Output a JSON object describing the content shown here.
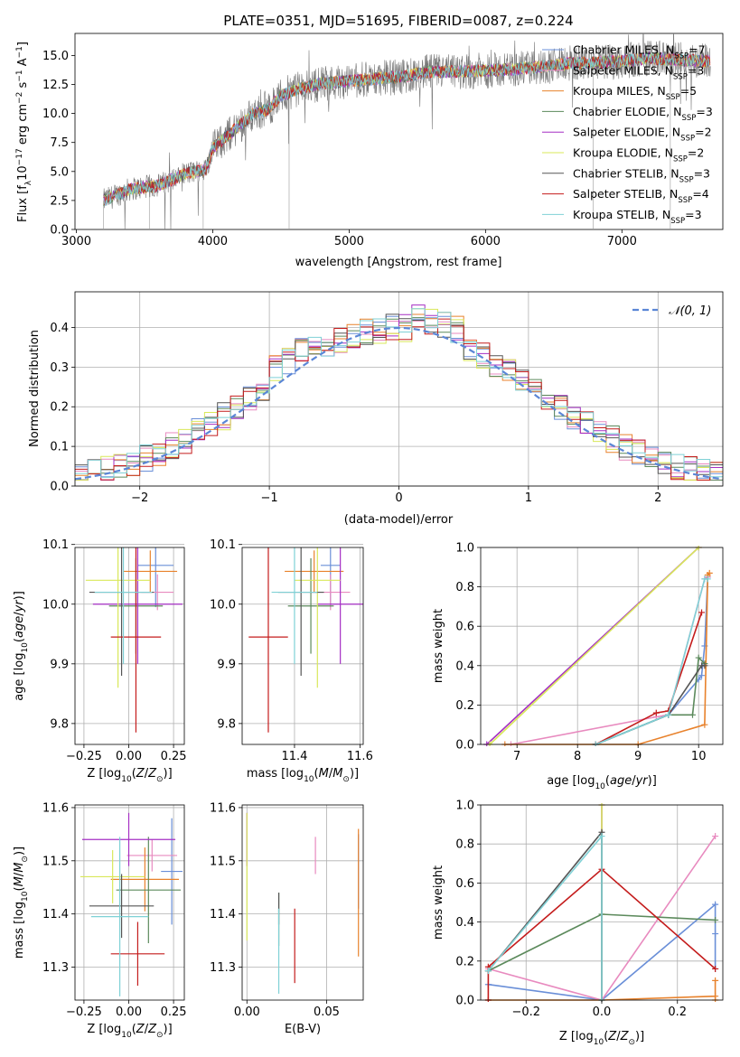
{
  "colors": {
    "Chabrier MILES": "#6a8fd8",
    "Salpeter MILES": "#e88abf",
    "Kroupa MILES": "#e8822c",
    "Chabrier ELODIE": "#5c8a5c",
    "Salpeter ELODIE": "#a52fc4",
    "Kroupa ELODIE": "#d9e85a",
    "Chabrier STELIB": "#555555",
    "Salpeter STELIB": "#c41c1c",
    "Kroupa STELIB": "#7fd1d6",
    "normal_curve": "#5b86d6"
  },
  "chart_data": [
    {
      "type": "line",
      "title": "PLATE=0351, MJD=51695, FIBERID=0087, z=0.224",
      "xlabel": "wavelength [Angstrom, rest frame]",
      "ylabel": "Flux [f_λ 10^-17 erg cm^-2 s^-1 A^-1]",
      "xlim": [
        2990,
        7740
      ],
      "ylim": [
        0,
        16.9
      ],
      "xticks": [
        "3000",
        "4000",
        "5000",
        "6000",
        "7000"
      ],
      "yticks": [
        "0.0",
        "2.5",
        "5.0",
        "7.5",
        "10.0",
        "12.5",
        "15.0"
      ],
      "legend": "upper-right",
      "legend_entries": [
        {
          "label": "Chabrier MILES, N",
          "sub": "SSP",
          "suffix": "=7"
        },
        {
          "label": "Salpeter MILES, N",
          "sub": "SSP",
          "suffix": "=3"
        },
        {
          "label": "Kroupa MILES, N",
          "sub": "SSP",
          "suffix": "=5"
        },
        {
          "label": "Chabrier ELODIE, N",
          "sub": "SSP",
          "suffix": "=3"
        },
        {
          "label": "Salpeter ELODIE, N",
          "sub": "SSP",
          "suffix": "=2"
        },
        {
          "label": "Kroupa ELODIE, N",
          "sub": "SSP",
          "suffix": "=2"
        },
        {
          "label": "Chabrier STELIB, N",
          "sub": "SSP",
          "suffix": "=3"
        },
        {
          "label": "Salpeter STELIB, N",
          "sub": "SSP",
          "suffix": "=4"
        },
        {
          "label": "Kroupa STELIB, N",
          "sub": "SSP",
          "suffix": "=3"
        }
      ],
      "spectrum_anchor_points": {
        "x": [
          3200,
          3400,
          3600,
          3800,
          3950,
          4000,
          4100,
          4200,
          4300,
          4400,
          4500,
          4600,
          4800,
          5000,
          5200,
          5400,
          5600,
          5800,
          6000,
          6200,
          6400,
          6600,
          6800,
          7000,
          7200,
          7400,
          7650
        ],
        "y": [
          2.5,
          3.5,
          3.8,
          4.8,
          5.2,
          7.0,
          8.0,
          9.0,
          10.0,
          10.3,
          11.5,
          12.0,
          12.6,
          12.8,
          13.0,
          13.2,
          13.6,
          13.6,
          13.7,
          13.8,
          14.0,
          14.3,
          14.4,
          14.5,
          14.8,
          14.6,
          14.5
        ]
      }
    },
    {
      "type": "histogram",
      "xlabel": "(data-model)/error",
      "ylabel": "Normed distribution",
      "xlim": [
        -2.5,
        2.5
      ],
      "ylim": [
        0,
        0.49
      ],
      "xticks": [
        "−2",
        "−1",
        "0",
        "1",
        "2"
      ],
      "yticks": [
        "0.0",
        "0.1",
        "0.2",
        "0.3",
        "0.4"
      ],
      "legend": "upper-right",
      "legend_label": "𝒩(0, 1)",
      "bin_width": 0.1
    },
    {
      "type": "errorbar",
      "xlabel": "Z [log10(Z/Z⊙)]",
      "ylabel": "age [log10(age/yr)]",
      "xlim": [
        -0.3,
        0.31
      ],
      "ylim": [
        9.765,
        10.095
      ],
      "xticks": [
        "−0.25",
        "0.00",
        "0.25"
      ],
      "yticks": [
        "9.8",
        "9.9",
        "10.0",
        "10.1"
      ],
      "points": [
        {
          "series": "Chabrier MILES",
          "x": 0.15,
          "xerr": 0.1,
          "y": 10.065,
          "yerr": 0.07
        },
        {
          "series": "Salpeter MILES",
          "x": 0.16,
          "xerr": 0.09,
          "y": 10.02,
          "yerr": 0.03
        },
        {
          "series": "Kroupa MILES",
          "x": 0.12,
          "xerr": 0.15,
          "y": 10.055,
          "yerr": 0.035
        },
        {
          "series": "Chabrier ELODIE",
          "x": 0.04,
          "xerr": 0.15,
          "y": 9.997,
          "yerr": 0.08
        },
        {
          "series": "Salpeter ELODIE",
          "x": 0.05,
          "xerr": 0.25,
          "y": 10.0,
          "yerr": 0.1
        },
        {
          "series": "Kroupa ELODIE",
          "x": -0.06,
          "xerr": 0.18,
          "y": 10.04,
          "yerr": 0.18
        },
        {
          "series": "Chabrier STELIB",
          "x": -0.04,
          "xerr": 0.18,
          "y": 10.02,
          "yerr": 0.14
        },
        {
          "series": "Salpeter STELIB",
          "x": 0.04,
          "xerr": 0.14,
          "y": 9.945,
          "yerr": 0.16
        },
        {
          "series": "Kroupa STELIB",
          "x": -0.03,
          "xerr": 0.16,
          "y": 10.02,
          "yerr": 0.12
        }
      ]
    },
    {
      "type": "errorbar",
      "xlabel": "mass [log10(M/M⊙)]",
      "ylabel": "",
      "xlim": [
        11.24,
        11.61
      ],
      "ylim": [
        9.765,
        10.095
      ],
      "xticks": [
        "11.4",
        "11.6"
      ],
      "yticks": [
        "9.8",
        "9.9",
        "10.0",
        "10.1"
      ],
      "points": [
        {
          "series": "Chabrier MILES",
          "x": 11.51,
          "xerr": 0.03,
          "y": 10.065,
          "yerr": 0.07
        },
        {
          "series": "Salpeter MILES",
          "x": 11.51,
          "xerr": 0.06,
          "y": 10.02,
          "yerr": 0.03
        },
        {
          "series": "Kroupa MILES",
          "x": 11.46,
          "xerr": 0.09,
          "y": 10.055,
          "yerr": 0.035
        },
        {
          "series": "Chabrier ELODIE",
          "x": 11.45,
          "xerr": 0.07,
          "y": 9.997,
          "yerr": 0.08
        },
        {
          "series": "Salpeter ELODIE",
          "x": 11.54,
          "xerr": 0.07,
          "y": 10.0,
          "yerr": 0.1
        },
        {
          "series": "Kroupa ELODIE",
          "x": 11.47,
          "xerr": 0.07,
          "y": 10.04,
          "yerr": 0.18
        },
        {
          "series": "Chabrier STELIB",
          "x": 11.42,
          "xerr": 0.07,
          "y": 10.02,
          "yerr": 0.14
        },
        {
          "series": "Salpeter STELIB",
          "x": 11.32,
          "xerr": 0.06,
          "y": 9.945,
          "yerr": 0.16
        },
        {
          "series": "Kroupa STELIB",
          "x": 11.4,
          "xerr": 0.07,
          "y": 10.02,
          "yerr": 0.12
        }
      ]
    },
    {
      "type": "line",
      "xlabel": "age  [log10(age/yr)]",
      "ylabel": "mass weight",
      "xlim": [
        6.4,
        10.4
      ],
      "ylim": [
        0,
        1.0
      ],
      "xticks": [
        "7",
        "8",
        "9",
        "10"
      ],
      "yticks": [
        "0.0",
        "0.2",
        "0.4",
        "0.6",
        "0.8",
        "1.0"
      ],
      "series": [
        {
          "name": "Chabrier MILES",
          "x": [
            8.3,
            9.5,
            10.0,
            10.05,
            10.1,
            10.15
          ],
          "y": [
            0.0,
            0.15,
            0.33,
            0.35,
            0.5,
            0.85
          ]
        },
        {
          "name": "Salpeter MILES",
          "x": [
            6.9,
            9.3,
            9.5,
            10.1,
            10.15
          ],
          "y": [
            0.0,
            0.14,
            0.15,
            0.84,
            0.85
          ]
        },
        {
          "name": "Kroupa MILES",
          "x": [
            6.8,
            9.0,
            10.1,
            10.15,
            10.18
          ],
          "y": [
            0.0,
            0.0,
            0.1,
            0.86,
            0.87
          ]
        },
        {
          "name": "Chabrier ELODIE",
          "x": [
            8.3,
            9.5,
            9.9,
            10.0,
            10.1
          ],
          "y": [
            0.0,
            0.15,
            0.15,
            0.44,
            0.41
          ]
        },
        {
          "name": "Salpeter ELODIE",
          "x": [
            6.5,
            10.0
          ],
          "y": [
            0.0,
            1.0
          ]
        },
        {
          "name": "Kroupa ELODIE",
          "x": [
            6.55,
            10.0
          ],
          "y": [
            0.0,
            1.0
          ]
        },
        {
          "name": "Chabrier STELIB",
          "x": [
            8.3,
            9.5,
            10.05,
            10.1
          ],
          "y": [
            0.0,
            0.15,
            0.4,
            0.4
          ]
        },
        {
          "name": "Salpeter STELIB",
          "x": [
            8.3,
            9.3,
            9.5,
            10.05
          ],
          "y": [
            0.0,
            0.16,
            0.17,
            0.67
          ]
        },
        {
          "name": "Kroupa STELIB",
          "x": [
            8.3,
            9.5,
            10.1,
            10.15
          ],
          "y": [
            0.0,
            0.15,
            0.84,
            0.84
          ]
        }
      ]
    },
    {
      "type": "errorbar",
      "xlabel": "Z [log10(Z/Z⊙)]",
      "ylabel": "mass [log10(M/M⊙)]",
      "xlim": [
        -0.3,
        0.31
      ],
      "ylim": [
        11.238,
        11.605
      ],
      "xticks": [
        "−0.25",
        "0.00",
        "0.25"
      ],
      "yticks": [
        "11.3",
        "11.4",
        "11.5",
        "11.6"
      ],
      "points": [
        {
          "series": "Chabrier MILES",
          "x": 0.24,
          "xerr": 0.06,
          "y": 11.48,
          "yerr": 0.1
        },
        {
          "series": "Salpeter MILES",
          "x": 0.13,
          "xerr": 0.14,
          "y": 11.51,
          "yerr": 0.03
        },
        {
          "series": "Kroupa MILES",
          "x": 0.09,
          "xerr": 0.19,
          "y": 11.465,
          "yerr": 0.06
        },
        {
          "series": "Chabrier ELODIE",
          "x": 0.11,
          "xerr": 0.18,
          "y": 11.445,
          "yerr": 0.1
        },
        {
          "series": "Salpeter ELODIE",
          "x": 0.0,
          "xerr": 0.26,
          "y": 11.54,
          "yerr": 0.05
        },
        {
          "series": "Kroupa ELODIE",
          "x": -0.09,
          "xerr": 0.18,
          "y": 11.47,
          "yerr": 0.05
        },
        {
          "series": "Chabrier STELIB",
          "x": -0.04,
          "xerr": 0.18,
          "y": 11.415,
          "yerr": 0.06
        },
        {
          "series": "Salpeter STELIB",
          "x": 0.05,
          "xerr": 0.15,
          "y": 11.325,
          "yerr": 0.06
        },
        {
          "series": "Kroupa STELIB",
          "x": -0.05,
          "xerr": 0.16,
          "y": 11.395,
          "yerr": 0.15
        }
      ]
    },
    {
      "type": "errorbar",
      "xlabel": "E(B-V)",
      "ylabel": "",
      "xlim": [
        -0.003,
        0.073
      ],
      "ylim": [
        11.238,
        11.605
      ],
      "xticks": [
        "0.00",
        "0.05"
      ],
      "yticks": [
        "11.3",
        "11.4",
        "11.5",
        "11.6"
      ],
      "points": [
        {
          "series": "Chabrier MILES",
          "x": 0.07,
          "xerr": 0.0,
          "y": 11.48,
          "yerr": 0.07
        },
        {
          "series": "Salpeter MILES",
          "x": 0.043,
          "xerr": 0.0,
          "y": 11.51,
          "yerr": 0.035
        },
        {
          "series": "Kroupa MILES",
          "x": 0.07,
          "xerr": 0.0,
          "y": 11.44,
          "yerr": 0.12
        },
        {
          "series": "Chabrier ELODIE",
          "x": 0.02,
          "xerr": 0.0,
          "y": 11.39,
          "yerr": 0.05
        },
        {
          "series": "Salpeter ELODIE",
          "x": 0.0,
          "xerr": 0.0,
          "y": 11.54,
          "yerr": 0.05
        },
        {
          "series": "Kroupa ELODIE",
          "x": 0.0,
          "xerr": 0.0,
          "y": 11.47,
          "yerr": 0.12
        },
        {
          "series": "Chabrier STELIB",
          "x": 0.02,
          "xerr": 0.0,
          "y": 11.41,
          "yerr": 0.03
        },
        {
          "series": "Salpeter STELIB",
          "x": 0.03,
          "xerr": 0.0,
          "y": 11.34,
          "yerr": 0.07
        },
        {
          "series": "Kroupa STELIB",
          "x": 0.02,
          "xerr": 0.0,
          "y": 11.33,
          "yerr": 0.08
        }
      ]
    },
    {
      "type": "line",
      "xlabel": "Z [log10(Z/Z⊙)]",
      "ylabel": "mass weight",
      "xlim": [
        -0.32,
        0.32
      ],
      "ylim": [
        0,
        1.0
      ],
      "xticks": [
        "−0.2",
        "0.0",
        "0.2"
      ],
      "yticks": [
        "0.0",
        "0.2",
        "0.4",
        "0.6",
        "0.8",
        "1.0"
      ],
      "series": [
        {
          "name": "Chabrier MILES",
          "x": [
            -0.3,
            0.0,
            0.3,
            0.3,
            0.3
          ],
          "y": [
            0.08,
            0.0,
            0.49,
            0.34,
            0.16
          ]
        },
        {
          "name": "Salpeter MILES",
          "x": [
            -0.3,
            0.0,
            0.3
          ],
          "y": [
            0.16,
            0.0,
            0.84
          ]
        },
        {
          "name": "Kroupa MILES",
          "x": [
            -0.3,
            0.0,
            0.3,
            0.3,
            0.3
          ],
          "y": [
            0.0,
            0.0,
            0.02,
            0.1,
            0.0
          ]
        },
        {
          "name": "Chabrier ELODIE",
          "x": [
            -0.3,
            0.0,
            0.3
          ],
          "y": [
            0.15,
            0.44,
            0.41
          ]
        },
        {
          "name": "Salpeter ELODIE",
          "x": [
            0.0,
            0.0
          ],
          "y": [
            0.0,
            1.0
          ]
        },
        {
          "name": "Kroupa ELODIE",
          "x": [
            0.0,
            0.0
          ],
          "y": [
            0.0,
            1.0
          ]
        },
        {
          "name": "Chabrier STELIB",
          "x": [
            -0.3,
            0.0,
            0.0
          ],
          "y": [
            0.15,
            0.86,
            0.0
          ]
        },
        {
          "name": "Salpeter STELIB",
          "x": [
            -0.3,
            -0.3,
            0.0,
            0.3
          ],
          "y": [
            0.0,
            0.17,
            0.67,
            0.16
          ]
        },
        {
          "name": "Kroupa STELIB",
          "x": [
            -0.3,
            0.0,
            0.0
          ],
          "y": [
            0.15,
            0.84,
            0.0
          ]
        }
      ]
    }
  ]
}
